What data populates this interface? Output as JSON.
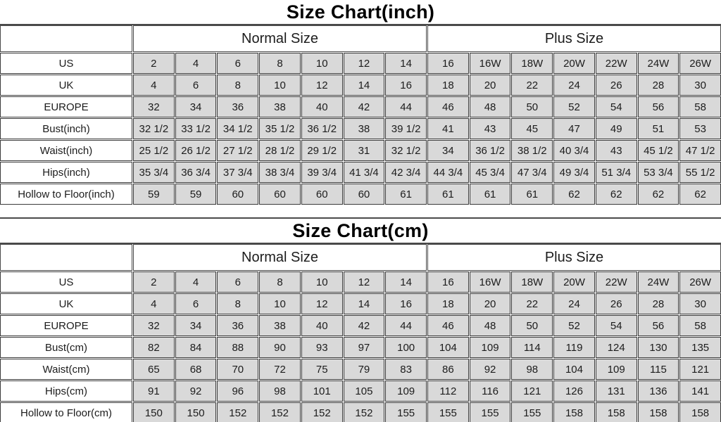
{
  "colors": {
    "page_background": "#ffffff",
    "data_cell_fill": "#d9d9d9",
    "label_cell_fill": "#ffffff",
    "border_color": "#3a3a3a",
    "text_color": "#1c1c1c",
    "title_color": "#000000"
  },
  "chart_data": [
    {
      "type": "table",
      "title": "Size Chart(inch)",
      "column_groups": [
        {
          "label": "",
          "span": 1
        },
        {
          "label": "Normal Size",
          "span": 7
        },
        {
          "label": "Plus Size",
          "span": 7
        }
      ],
      "rows": [
        {
          "label": "US",
          "values": [
            "2",
            "4",
            "6",
            "8",
            "10",
            "12",
            "14",
            "16",
            "16W",
            "18W",
            "20W",
            "22W",
            "24W",
            "26W"
          ]
        },
        {
          "label": "UK",
          "values": [
            "4",
            "6",
            "8",
            "10",
            "12",
            "14",
            "16",
            "18",
            "20",
            "22",
            "24",
            "26",
            "28",
            "30"
          ]
        },
        {
          "label": "EUROPE",
          "values": [
            "32",
            "34",
            "36",
            "38",
            "40",
            "42",
            "44",
            "46",
            "48",
            "50",
            "52",
            "54",
            "56",
            "58"
          ]
        },
        {
          "label": "Bust(inch)",
          "values": [
            "32 1/2",
            "33 1/2",
            "34 1/2",
            "35 1/2",
            "36 1/2",
            "38",
            "39 1/2",
            "41",
            "43",
            "45",
            "47",
            "49",
            "51",
            "53"
          ]
        },
        {
          "label": "Waist(inch)",
          "values": [
            "25 1/2",
            "26 1/2",
            "27 1/2",
            "28 1/2",
            "29 1/2",
            "31",
            "32 1/2",
            "34",
            "36 1/2",
            "38 1/2",
            "40 3/4",
            "43",
            "45 1/2",
            "47 1/2"
          ]
        },
        {
          "label": "Hips(inch)",
          "values": [
            "35 3/4",
            "36 3/4",
            "37 3/4",
            "38 3/4",
            "39 3/4",
            "41 3/4",
            "42 3/4",
            "44 3/4",
            "45 3/4",
            "47 3/4",
            "49 3/4",
            "51 3/4",
            "53 3/4",
            "55 1/2"
          ]
        },
        {
          "label": "Hollow to Floor(inch)",
          "values": [
            "59",
            "59",
            "60",
            "60",
            "60",
            "60",
            "61",
            "61",
            "61",
            "61",
            "62",
            "62",
            "62",
            "62"
          ]
        }
      ]
    },
    {
      "type": "table",
      "title": "Size Chart(cm)",
      "column_groups": [
        {
          "label": "",
          "span": 1
        },
        {
          "label": "Normal Size",
          "span": 7
        },
        {
          "label": "Plus Size",
          "span": 7
        }
      ],
      "rows": [
        {
          "label": "US",
          "values": [
            "2",
            "4",
            "6",
            "8",
            "10",
            "12",
            "14",
            "16",
            "16W",
            "18W",
            "20W",
            "22W",
            "24W",
            "26W"
          ]
        },
        {
          "label": "UK",
          "values": [
            "4",
            "6",
            "8",
            "10",
            "12",
            "14",
            "16",
            "18",
            "20",
            "22",
            "24",
            "26",
            "28",
            "30"
          ]
        },
        {
          "label": "EUROPE",
          "values": [
            "32",
            "34",
            "36",
            "38",
            "40",
            "42",
            "44",
            "46",
            "48",
            "50",
            "52",
            "54",
            "56",
            "58"
          ]
        },
        {
          "label": "Bust(cm)",
          "values": [
            "82",
            "84",
            "88",
            "90",
            "93",
            "97",
            "100",
            "104",
            "109",
            "114",
            "119",
            "124",
            "130",
            "135"
          ]
        },
        {
          "label": "Waist(cm)",
          "values": [
            "65",
            "68",
            "70",
            "72",
            "75",
            "79",
            "83",
            "86",
            "92",
            "98",
            "104",
            "109",
            "115",
            "121"
          ]
        },
        {
          "label": "Hips(cm)",
          "values": [
            "91",
            "92",
            "96",
            "98",
            "101",
            "105",
            "109",
            "112",
            "116",
            "121",
            "126",
            "131",
            "136",
            "141"
          ]
        },
        {
          "label": "Hollow to Floor(cm)",
          "values": [
            "150",
            "150",
            "152",
            "152",
            "152",
            "152",
            "155",
            "155",
            "155",
            "155",
            "158",
            "158",
            "158",
            "158"
          ]
        }
      ]
    }
  ]
}
